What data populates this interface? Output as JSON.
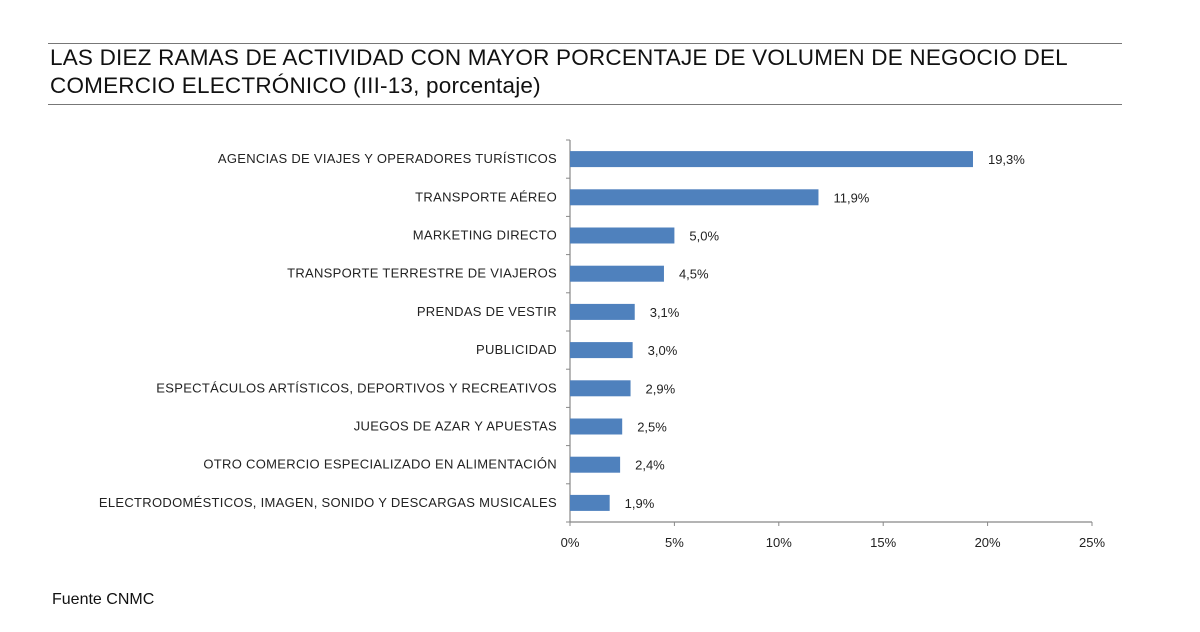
{
  "chart_data": {
    "type": "bar",
    "orientation": "horizontal",
    "title": "LAS DIEZ RAMAS DE ACTIVIDAD CON MAYOR PORCENTAJE DE VOLUMEN DE NEGOCIO DEL COMERCIO ELECTRÓNICO (III-13, porcentaje)",
    "categories": [
      "AGENCIAS DE VIAJES Y OPERADORES TURÍSTICOS",
      "TRANSPORTE AÉREO",
      "MARKETING DIRECTO",
      "TRANSPORTE TERRESTRE DE VIAJEROS",
      "PRENDAS DE VESTIR",
      "PUBLICIDAD",
      "ESPECTÁCULOS ARTÍSTICOS, DEPORTIVOS Y RECREATIVOS",
      "JUEGOS DE AZAR Y APUESTAS",
      "OTRO COMERCIO ESPECIALIZADO EN ALIMENTACIÓN",
      "ELECTRODOMÉSTICOS,  IMAGEN,  SONIDO Y DESCARGAS MUSICALES"
    ],
    "values": [
      19.3,
      11.9,
      5.0,
      4.5,
      3.1,
      3.0,
      2.9,
      2.5,
      2.4,
      1.9
    ],
    "data_labels": [
      "19,3%",
      "11,9%",
      "5,0%",
      "4,5%",
      "3,1%",
      "3,0%",
      "2,9%",
      "2,5%",
      "2,4%",
      "1,9%"
    ],
    "xlim": [
      0,
      25
    ],
    "x_ticks": [
      0,
      5,
      10,
      15,
      20,
      25
    ],
    "x_tick_labels": [
      "0%",
      "5%",
      "10%",
      "15%",
      "20%",
      "25%"
    ],
    "xlabel": "",
    "ylabel": "",
    "grid": false,
    "legend": "none",
    "bar_color": "#4f81bd"
  },
  "source": "Fuente CNMC"
}
